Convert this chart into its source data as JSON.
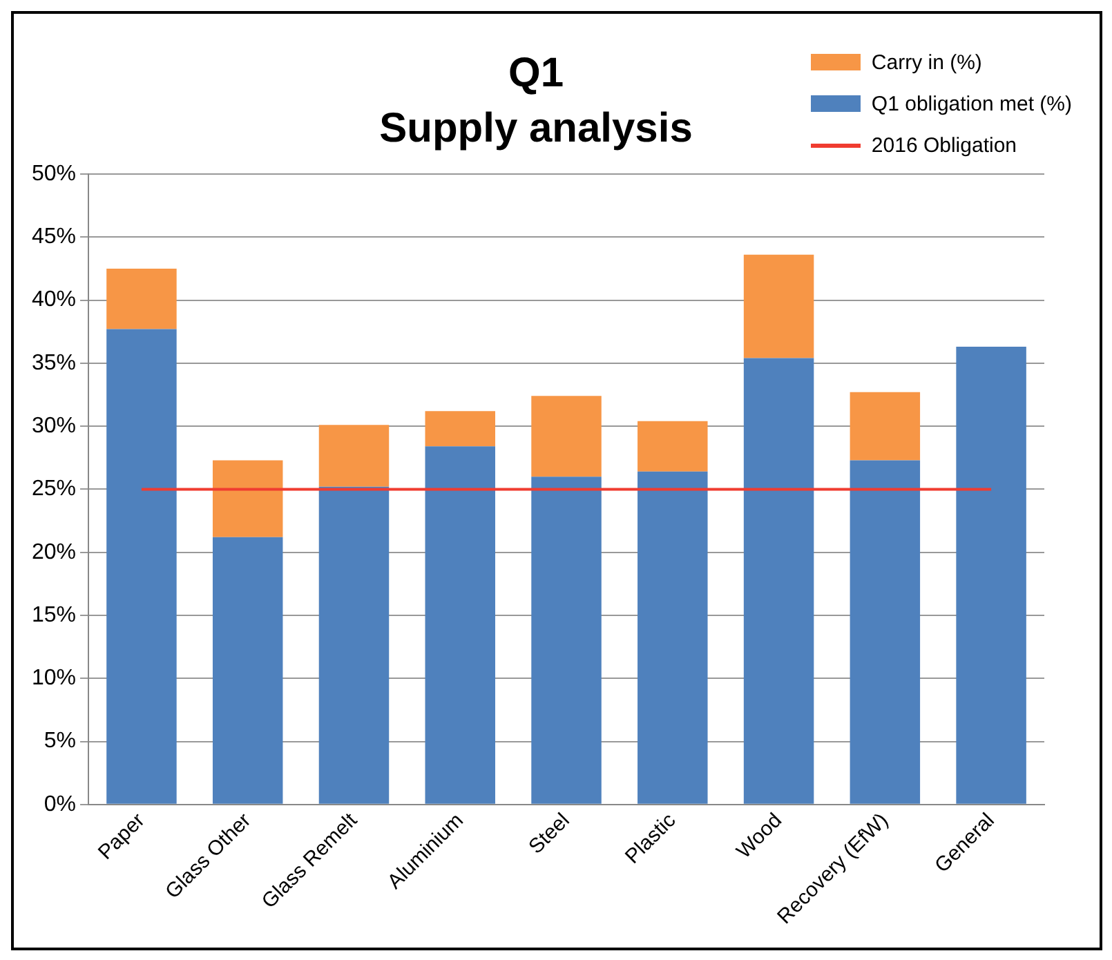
{
  "chart_data": {
    "type": "bar",
    "title": "Q1",
    "subtitle": "Supply analysis",
    "stacked": true,
    "legend": "top right",
    "grid": "y",
    "categories": [
      "Paper",
      "Glass Other",
      "Glass Remelt",
      "Aluminium",
      "Steel",
      "Plastic",
      "Wood",
      "Recovery (EfW)",
      "General"
    ],
    "series": [
      {
        "name": "Q1 obligation met (%)",
        "color": "#4f81bd",
        "values": [
          37.7,
          21.2,
          25.2,
          28.4,
          26.0,
          26.4,
          35.4,
          27.3,
          36.3
        ]
      },
      {
        "name": "Carry in (%)",
        "color": "#f79646",
        "values": [
          4.8,
          6.1,
          4.9,
          2.8,
          6.4,
          4.0,
          8.2,
          5.4,
          0
        ]
      }
    ],
    "ref_lines": [
      {
        "axis": "y",
        "value": 25,
        "label": "2016 Obligation",
        "color": "#f03c30"
      }
    ],
    "ylim": [
      0,
      50
    ],
    "yticks": [
      {
        "value": 0,
        "label": "0%"
      },
      {
        "value": 5,
        "label": "5%"
      },
      {
        "value": 10,
        "label": "10%"
      },
      {
        "value": 15,
        "label": "15%"
      },
      {
        "value": 20,
        "label": "20%"
      },
      {
        "value": 25,
        "label": "25%"
      },
      {
        "value": 30,
        "label": "30%"
      },
      {
        "value": 35,
        "label": "35%"
      },
      {
        "value": 40,
        "label": "40%"
      },
      {
        "value": 45,
        "label": "45%"
      },
      {
        "value": 50,
        "label": "50%"
      }
    ]
  }
}
